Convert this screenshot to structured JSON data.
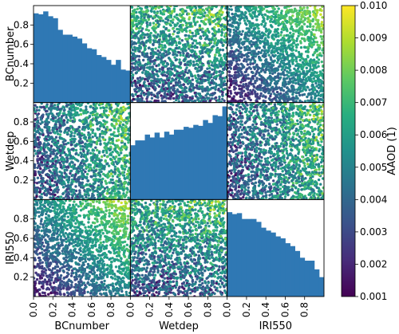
{
  "chart_data": {
    "type": "scatter-matrix",
    "variables": [
      "BCnumber",
      "Wetdep",
      "IRI550"
    ],
    "colorbar": {
      "label": "AAOD (1)",
      "range": [
        0.001,
        0.01
      ],
      "ticks": [
        "0.010",
        "0.009",
        "0.008",
        "0.007",
        "0.006",
        "0.005",
        "0.004",
        "0.003",
        "0.002",
        "0.001"
      ],
      "colormap": "viridis"
    },
    "y_ticks": [
      "0.8",
      "0.6",
      "0.4",
      "0.2"
    ],
    "x_ticks": [
      "0.0",
      "0.2",
      "0.4",
      "0.6",
      "0.8"
    ],
    "axis_range": [
      0,
      1
    ],
    "histograms": {
      "BCnumber": [
        0.92,
        0.91,
        0.94,
        0.89,
        0.87,
        0.75,
        0.7,
        0.7,
        0.68,
        0.66,
        0.61,
        0.56,
        0.55,
        0.49,
        0.47,
        0.44,
        0.39,
        0.44,
        0.34,
        0.33
      ],
      "Wetdep": [
        0.56,
        0.61,
        0.61,
        0.67,
        0.64,
        0.69,
        0.64,
        0.7,
        0.67,
        0.72,
        0.72,
        0.75,
        0.74,
        0.77,
        0.76,
        0.82,
        0.79,
        0.87,
        0.86,
        0.96
      ],
      "IRI550": [
        0.87,
        0.85,
        0.86,
        0.8,
        0.8,
        0.8,
        0.77,
        0.71,
        0.68,
        0.66,
        0.62,
        0.6,
        0.55,
        0.52,
        0.47,
        0.4,
        0.37,
        0.37,
        0.28,
        0.2
      ]
    },
    "histogram_bins": 20,
    "histogram_color": "#2f78b4",
    "aaod_relation": "AAOD increases with BCnumber and IRI550; weakly with Wetdep",
    "points_per_panel": 1800
  }
}
